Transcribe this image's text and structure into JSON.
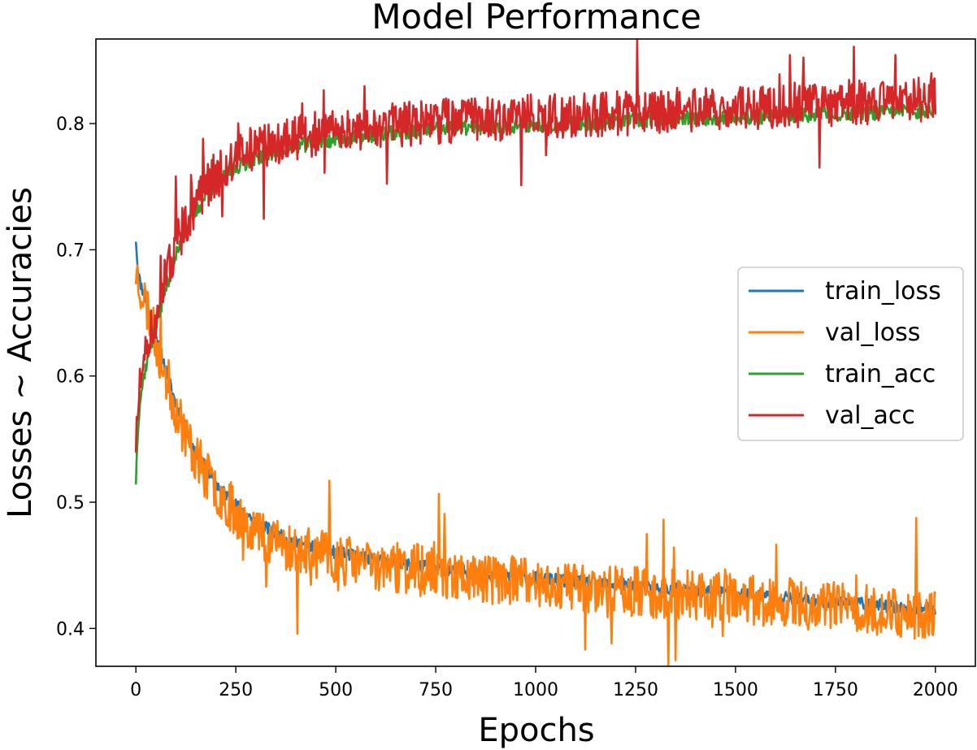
{
  "chart_data": {
    "type": "line",
    "title": "Model Performance",
    "xlabel": "Epochs",
    "ylabel": "Losses ~ Accuracies",
    "xlim": [
      -100,
      2100
    ],
    "ylim": [
      0.37,
      0.867
    ],
    "xticks": [
      0,
      250,
      500,
      750,
      1000,
      1250,
      1500,
      1750,
      2000
    ],
    "xtick_labels": [
      "0",
      "250",
      "500",
      "750",
      "1000",
      "1250",
      "1500",
      "1750",
      "2000"
    ],
    "yticks": [
      0.4,
      0.5,
      0.6,
      0.7,
      0.8
    ],
    "ytick_labels": [
      "0.4",
      "0.5",
      "0.6",
      "0.7",
      "0.8"
    ],
    "grid": false,
    "legend_position": "center-right",
    "series": [
      {
        "name": "train_loss",
        "color": "#1f77b4",
        "x": [
          0,
          5,
          10,
          20,
          30,
          50,
          75,
          100,
          125,
          150,
          175,
          200,
          250,
          300,
          350,
          400,
          500,
          600,
          700,
          800,
          900,
          1000,
          1100,
          1200,
          1300,
          1400,
          1500,
          1600,
          1700,
          1800,
          1900,
          2000
        ],
        "y": [
          0.709,
          0.684,
          0.675,
          0.665,
          0.655,
          0.632,
          0.605,
          0.578,
          0.558,
          0.54,
          0.527,
          0.515,
          0.498,
          0.485,
          0.475,
          0.468,
          0.46,
          0.455,
          0.45,
          0.446,
          0.443,
          0.44,
          0.437,
          0.435,
          0.432,
          0.43,
          0.428,
          0.425,
          0.422,
          0.42,
          0.417,
          0.415
        ],
        "noise": 0.005
      },
      {
        "name": "val_loss",
        "color": "#ff7f0e",
        "x": [
          0,
          5,
          10,
          20,
          30,
          50,
          75,
          100,
          125,
          150,
          175,
          200,
          250,
          300,
          350,
          400,
          500,
          600,
          700,
          800,
          900,
          1000,
          1100,
          1200,
          1300,
          1400,
          1500,
          1600,
          1700,
          1800,
          1900,
          2000
        ],
        "y": [
          0.683,
          0.678,
          0.672,
          0.663,
          0.652,
          0.628,
          0.6,
          0.574,
          0.553,
          0.536,
          0.522,
          0.51,
          0.492,
          0.478,
          0.468,
          0.462,
          0.455,
          0.45,
          0.446,
          0.442,
          0.439,
          0.436,
          0.433,
          0.431,
          0.428,
          0.426,
          0.424,
          0.421,
          0.418,
          0.416,
          0.413,
          0.41
        ],
        "noise": 0.02
      },
      {
        "name": "train_acc",
        "color": "#2ca02c",
        "x": [
          0,
          5,
          10,
          20,
          30,
          50,
          75,
          100,
          125,
          150,
          175,
          200,
          250,
          300,
          350,
          400,
          500,
          600,
          700,
          800,
          900,
          1000,
          1100,
          1200,
          1300,
          1400,
          1500,
          1600,
          1700,
          1800,
          1900,
          2000
        ],
        "y": [
          0.517,
          0.56,
          0.58,
          0.6,
          0.615,
          0.64,
          0.67,
          0.695,
          0.715,
          0.73,
          0.743,
          0.752,
          0.765,
          0.773,
          0.778,
          0.782,
          0.787,
          0.791,
          0.794,
          0.796,
          0.798,
          0.799,
          0.8,
          0.802,
          0.803,
          0.804,
          0.805,
          0.806,
          0.807,
          0.808,
          0.809,
          0.81
        ],
        "noise": 0.006
      },
      {
        "name": "val_acc",
        "color": "#d62728",
        "x": [
          0,
          5,
          10,
          20,
          30,
          50,
          75,
          100,
          125,
          150,
          175,
          200,
          250,
          300,
          350,
          400,
          500,
          600,
          700,
          800,
          900,
          1000,
          1100,
          1200,
          1300,
          1400,
          1500,
          1600,
          1700,
          1800,
          1900,
          2000
        ],
        "y": [
          0.548,
          0.575,
          0.59,
          0.607,
          0.622,
          0.648,
          0.678,
          0.703,
          0.722,
          0.737,
          0.75,
          0.76,
          0.774,
          0.781,
          0.786,
          0.789,
          0.794,
          0.797,
          0.8,
          0.802,
          0.804,
          0.806,
          0.807,
          0.808,
          0.81,
          0.811,
          0.812,
          0.814,
          0.815,
          0.817,
          0.818,
          0.82
        ],
        "noise": 0.018
      }
    ]
  }
}
